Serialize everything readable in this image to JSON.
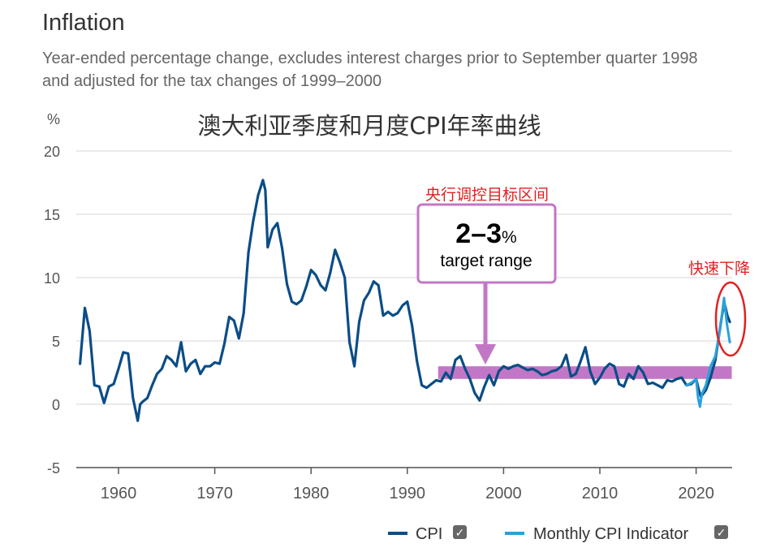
{
  "title": "Inflation",
  "subtitle": "Year-ended percentage change, excludes interest charges prior to September quarter 1998 and adjusted for the tax changes of 1999–2000",
  "colors": {
    "cpi": "#0b4d86",
    "monthly": "#2aa1dd",
    "band": "#c277c6",
    "annotation_red": "#e02020",
    "callout_border": "#c277c6"
  },
  "chart_data": {
    "type": "line",
    "title": "澳大利亚季度和月度CPI年率曲线",
    "ylabel": "%",
    "ylim": [
      -5,
      20
    ],
    "xlim": [
      1956,
      2023.7
    ],
    "yticks": [
      -5,
      0,
      5,
      10,
      15,
      20
    ],
    "xticks": [
      1960,
      1970,
      1980,
      1990,
      2000,
      2010,
      2020
    ],
    "target_band": {
      "from_year": 1993.2,
      "to_year": 2023.7,
      "low": 2,
      "high": 3
    },
    "series": [
      {
        "name": "CPI",
        "x": [
          1956.0,
          1956.5,
          1957.0,
          1957.5,
          1958.0,
          1958.5,
          1959.0,
          1959.5,
          1960.0,
          1960.5,
          1961.0,
          1961.5,
          1962.0,
          1962.25,
          1962.5,
          1963.0,
          1963.5,
          1964.0,
          1964.5,
          1965.0,
          1965.5,
          1966.0,
          1966.5,
          1967.0,
          1967.5,
          1968.0,
          1968.5,
          1969.0,
          1969.5,
          1970.0,
          1970.5,
          1971.0,
          1971.5,
          1972.0,
          1972.5,
          1973.0,
          1973.5,
          1974.0,
          1974.5,
          1975.0,
          1975.25,
          1975.5,
          1976.0,
          1976.5,
          1977.0,
          1977.5,
          1978.0,
          1978.5,
          1979.0,
          1979.5,
          1980.0,
          1980.5,
          1981.0,
          1981.5,
          1982.0,
          1982.5,
          1983.0,
          1983.5,
          1984.0,
          1984.5,
          1985.0,
          1985.5,
          1986.0,
          1986.5,
          1987.0,
          1987.5,
          1988.0,
          1988.5,
          1989.0,
          1989.5,
          1990.0,
          1990.5,
          1991.0,
          1991.5,
          1992.0,
          1992.5,
          1993.0,
          1993.5,
          1994.0,
          1994.5,
          1995.0,
          1995.5,
          1996.0,
          1996.5,
          1997.0,
          1997.5,
          1998.0,
          1998.5,
          1999.0,
          1999.5,
          2000.0,
          2000.5,
          2001.0,
          2001.5,
          2002.0,
          2002.5,
          2003.0,
          2003.5,
          2004.0,
          2004.5,
          2005.0,
          2005.5,
          2006.0,
          2006.5,
          2007.0,
          2007.5,
          2008.0,
          2008.5,
          2009.0,
          2009.5,
          2010.0,
          2010.5,
          2011.0,
          2011.5,
          2012.0,
          2012.5,
          2013.0,
          2013.5,
          2014.0,
          2014.5,
          2015.0,
          2015.5,
          2016.0,
          2016.5,
          2017.0,
          2017.5,
          2018.0,
          2018.5,
          2019.0,
          2019.5,
          2020.0,
          2020.25,
          2020.5,
          2021.0,
          2021.5,
          2022.0,
          2022.5,
          2022.75,
          2023.0,
          2023.25,
          2023.5
        ],
        "values": [
          3.2,
          7.6,
          5.8,
          1.5,
          1.4,
          0.1,
          1.4,
          1.6,
          2.8,
          4.1,
          4.0,
          0.5,
          -1.3,
          0.0,
          0.2,
          0.5,
          1.5,
          2.4,
          2.8,
          3.8,
          3.5,
          3.0,
          4.9,
          2.6,
          3.2,
          3.5,
          2.4,
          3.0,
          3.0,
          3.3,
          3.2,
          4.8,
          6.9,
          6.6,
          5.2,
          7.2,
          12.0,
          14.5,
          16.5,
          17.7,
          16.9,
          12.4,
          13.8,
          14.3,
          12.3,
          9.5,
          8.1,
          7.9,
          8.2,
          9.3,
          10.6,
          10.2,
          9.4,
          9.0,
          10.4,
          12.2,
          11.2,
          10.0,
          4.9,
          3.0,
          6.5,
          8.2,
          8.8,
          9.7,
          9.4,
          7.0,
          7.3,
          7.0,
          7.2,
          7.8,
          8.1,
          6.2,
          3.4,
          1.5,
          1.3,
          1.6,
          1.9,
          1.8,
          2.5,
          2.0,
          3.5,
          3.8,
          2.8,
          2.0,
          0.9,
          0.3,
          1.4,
          2.3,
          1.5,
          2.6,
          3.0,
          2.8,
          3.0,
          3.1,
          2.9,
          2.7,
          2.8,
          2.6,
          2.3,
          2.4,
          2.6,
          2.7,
          3.0,
          3.9,
          2.2,
          2.4,
          3.4,
          4.5,
          2.6,
          1.6,
          2.1,
          2.8,
          3.2,
          3.0,
          1.6,
          1.4,
          2.4,
          2.0,
          3.0,
          2.5,
          1.6,
          1.7,
          1.5,
          1.3,
          1.9,
          1.8,
          2.0,
          2.1,
          1.5,
          1.6,
          2.0,
          1.2,
          0.6,
          1.1,
          2.1,
          3.5,
          6.1,
          7.3,
          7.8,
          7.0,
          6.5
        ]
      },
      {
        "name": "Monthly CPI Indicator",
        "x": [
          2019.0,
          2019.5,
          2020.0,
          2020.2,
          2020.4,
          2020.6,
          2021.0,
          2021.5,
          2022.0,
          2022.5,
          2022.9,
          2023.2,
          2023.5
        ],
        "values": [
          1.5,
          1.7,
          2.0,
          0.5,
          -0.2,
          0.8,
          1.5,
          3.0,
          3.8,
          6.0,
          8.4,
          6.3,
          4.9
        ]
      }
    ],
    "annotations": {
      "band_label": "央行调控目标区间",
      "range_value": "2–3",
      "range_unit": "%",
      "range_caption": "target range",
      "drop_label": "快速下降"
    },
    "legend": [
      {
        "name": "CPI",
        "checked": "✓"
      },
      {
        "name": "Monthly CPI Indicator",
        "checked": "✓"
      }
    ]
  }
}
